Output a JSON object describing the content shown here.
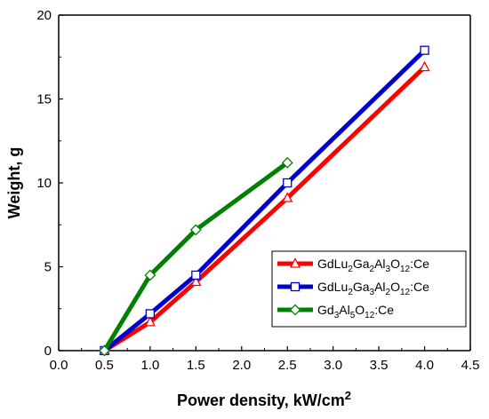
{
  "chart_data": {
    "type": "line",
    "xlabel": "Power density, kW/cm",
    "xlabel_sup": "2",
    "ylabel": "Weight, g",
    "xlim": [
      0.0,
      4.5
    ],
    "ylim": [
      0,
      20
    ],
    "x_ticks": [
      "0.0",
      "0.5",
      "1.0",
      "1.5",
      "2.0",
      "2.5",
      "3.0",
      "3.5",
      "4.0",
      "4.5"
    ],
    "y_ticks": [
      "0",
      "5",
      "10",
      "15",
      "20"
    ],
    "grid": false,
    "legend_position": "lower-right",
    "series": [
      {
        "name_parts": [
          [
            "GdLu",
            ""
          ],
          [
            "2",
            "sub"
          ],
          [
            "Ga",
            ""
          ],
          [
            "2",
            "sub"
          ],
          [
            "Al",
            ""
          ],
          [
            "3",
            "sub"
          ],
          [
            "O",
            ""
          ],
          [
            "12",
            "sub"
          ],
          [
            ":Ce",
            ""
          ]
        ],
        "color": "#ff0000",
        "marker": "triangle",
        "x": [
          0.5,
          1.0,
          1.5,
          2.5,
          4.0
        ],
        "y": [
          0.0,
          1.7,
          4.1,
          9.1,
          16.9
        ]
      },
      {
        "name_parts": [
          [
            "GdLu",
            ""
          ],
          [
            "2",
            "sub"
          ],
          [
            "Ga",
            ""
          ],
          [
            "3",
            "sub"
          ],
          [
            "Al",
            ""
          ],
          [
            "2",
            "sub"
          ],
          [
            "O",
            ""
          ],
          [
            "12",
            "sub"
          ],
          [
            ":Ce",
            ""
          ]
        ],
        "color": "#0000cc",
        "marker": "square",
        "x": [
          0.5,
          1.0,
          1.5,
          2.5,
          4.0
        ],
        "y": [
          0.0,
          2.2,
          4.5,
          10.0,
          17.9
        ]
      },
      {
        "name_parts": [
          [
            "Gd",
            ""
          ],
          [
            "3",
            "sub"
          ],
          [
            "Al",
            ""
          ],
          [
            "5",
            "sub"
          ],
          [
            "O",
            ""
          ],
          [
            "12",
            "sub"
          ],
          [
            ":Ce",
            ""
          ]
        ],
        "color": "#008000",
        "marker": "diamond",
        "x": [
          0.5,
          1.0,
          1.5,
          2.5
        ],
        "y": [
          0.0,
          4.5,
          7.2,
          11.2
        ]
      }
    ]
  }
}
